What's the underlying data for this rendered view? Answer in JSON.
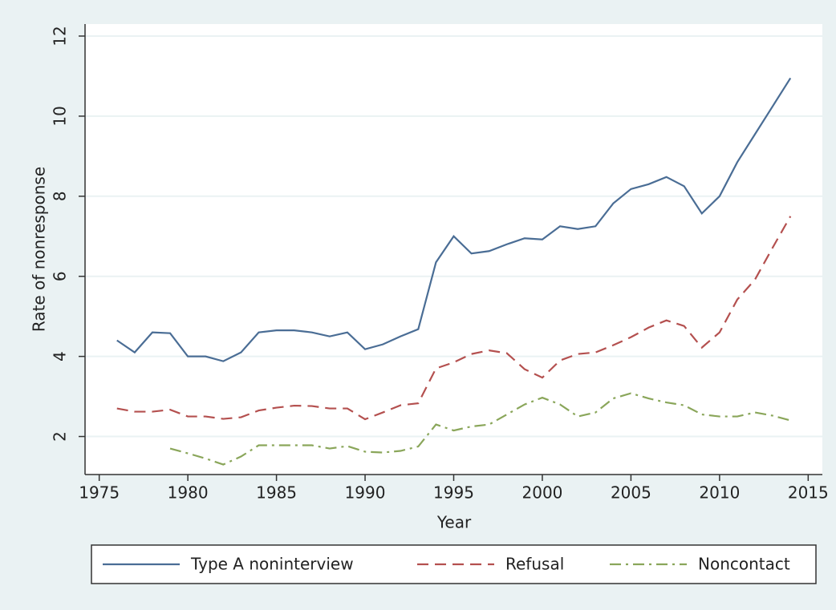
{
  "chart_data": {
    "type": "line",
    "xlabel": "Year",
    "ylabel": "Rate of nonresponse",
    "x": [
      1976,
      1977,
      1978,
      1979,
      1980,
      1981,
      1982,
      1983,
      1984,
      1985,
      1986,
      1987,
      1988,
      1989,
      1990,
      1991,
      1992,
      1993,
      1994,
      1995,
      1996,
      1997,
      1998,
      1999,
      2000,
      2001,
      2002,
      2003,
      2004,
      2005,
      2006,
      2007,
      2008,
      2009,
      2010,
      2011,
      2012,
      2013,
      2014
    ],
    "series": [
      {
        "name": "Type A noninterview",
        "color": "#4a6d95",
        "style": "solid",
        "values": [
          4.4,
          4.1,
          4.6,
          4.58,
          4.0,
          4.0,
          3.88,
          4.1,
          4.6,
          4.65,
          4.65,
          4.6,
          4.5,
          4.6,
          4.18,
          4.3,
          4.5,
          4.68,
          6.35,
          7.0,
          6.57,
          6.63,
          6.8,
          6.95,
          6.92,
          7.25,
          7.18,
          7.25,
          7.82,
          8.18,
          8.3,
          8.48,
          8.25,
          7.57,
          8.0,
          8.85,
          9.55,
          10.25,
          10.95
        ]
      },
      {
        "name": "Refusal",
        "color": "#b4504f",
        "style": "dashed",
        "values": [
          2.7,
          2.62,
          2.62,
          2.67,
          2.5,
          2.5,
          2.44,
          2.48,
          2.65,
          2.72,
          2.77,
          2.76,
          2.7,
          2.7,
          2.43,
          2.6,
          2.78,
          2.83,
          3.7,
          3.85,
          4.06,
          4.15,
          4.08,
          3.68,
          3.47,
          3.9,
          4.06,
          4.1,
          4.28,
          4.48,
          4.72,
          4.9,
          4.76,
          4.22,
          4.6,
          5.42,
          5.92,
          6.72,
          7.5
        ]
      },
      {
        "name": "Noncontact",
        "color": "#8aa65a",
        "style": "dashdot",
        "values": [
          null,
          null,
          null,
          1.7,
          1.58,
          1.45,
          1.3,
          1.5,
          1.78,
          1.78,
          1.78,
          1.78,
          1.7,
          1.76,
          1.62,
          1.6,
          1.64,
          1.75,
          2.3,
          2.15,
          2.25,
          2.3,
          2.55,
          2.8,
          2.97,
          2.8,
          2.5,
          2.6,
          2.95,
          3.08,
          2.95,
          2.85,
          2.78,
          2.55,
          2.5,
          2.5,
          2.6,
          2.52,
          2.4
        ]
      }
    ],
    "xlim": [
      1974.2,
      2015.8
    ],
    "xticks": [
      1975,
      1980,
      1985,
      1990,
      1995,
      2000,
      2005,
      2010,
      2015
    ],
    "ylim": [
      1.05,
      12.3
    ],
    "yticks": [
      2,
      4,
      6,
      8,
      10,
      12
    ],
    "grid": true,
    "legend": "bottom"
  }
}
